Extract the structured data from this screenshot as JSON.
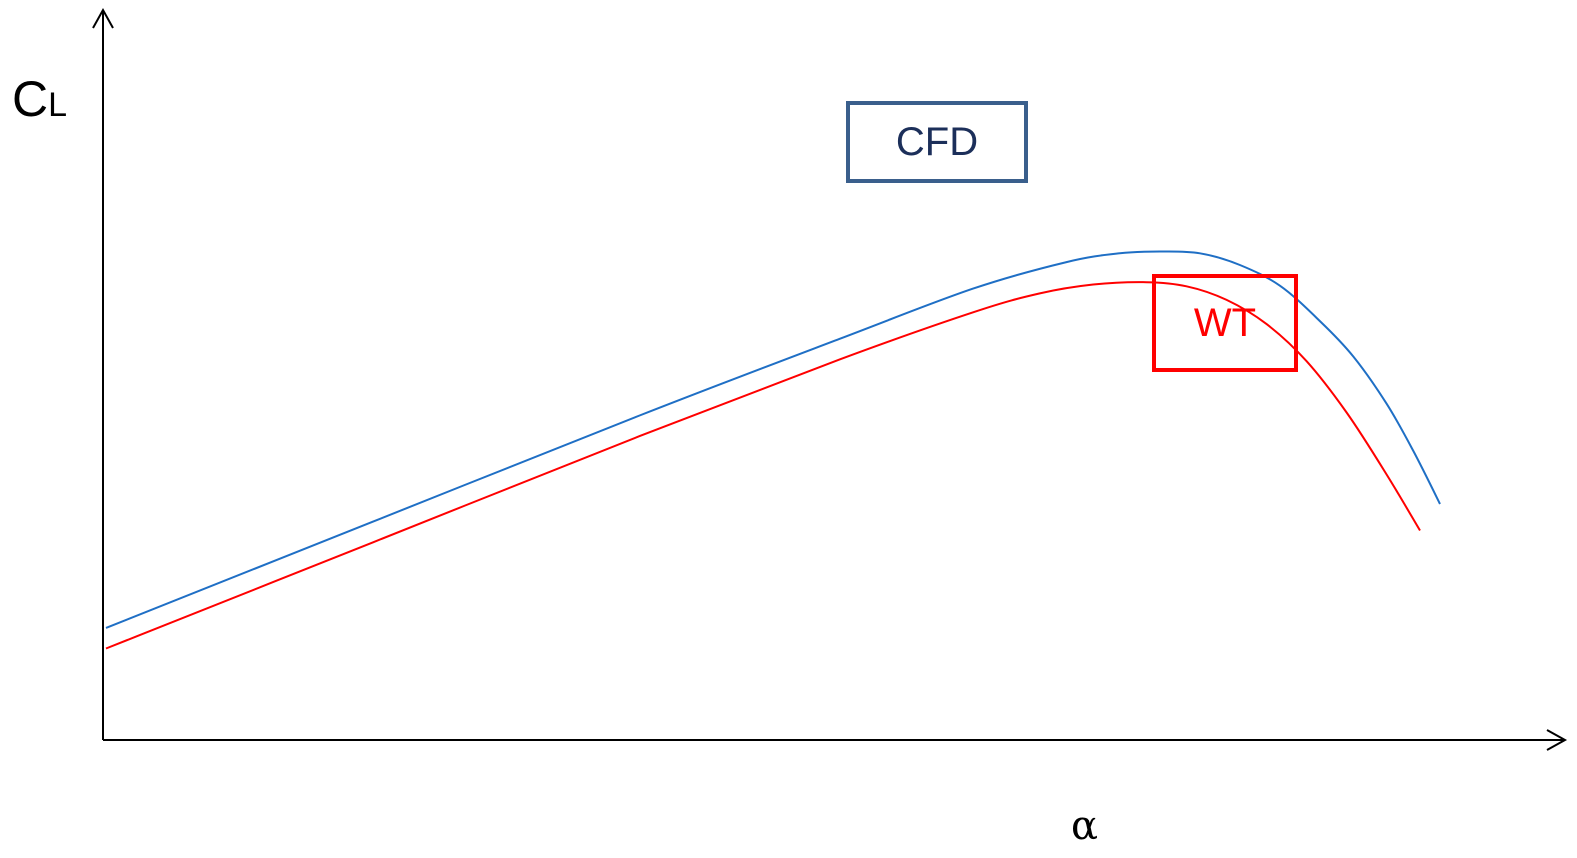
{
  "chart_data": {
    "type": "line",
    "ylabel": {
      "main": "C",
      "sub": "L"
    },
    "xlabel": "α",
    "xlim": [
      0,
      1
    ],
    "ylim": [
      0,
      1
    ],
    "grid": false,
    "legend_style": "boxed labels next to curves",
    "series": [
      {
        "name": "CFD",
        "color": "#1f6fc5",
        "label_color": "#1c2f5a",
        "box_color": "#3a5f8c",
        "x": [
          0.0,
          0.2,
          0.4,
          0.55,
          0.65,
          0.72,
          0.76,
          0.79,
          0.82,
          0.85,
          0.88,
          0.91,
          0.935,
          0.96,
          0.98,
          1.0
        ],
        "y": [
          0.19,
          0.37,
          0.55,
          0.68,
          0.765,
          0.81,
          0.825,
          0.828,
          0.825,
          0.805,
          0.77,
          0.71,
          0.65,
          0.57,
          0.49,
          0.4
        ]
      },
      {
        "name": "WT",
        "color": "#ff0000",
        "label_color": "#ff0000",
        "box_color": "#ff0000",
        "x": [
          0.0,
          0.2,
          0.4,
          0.55,
          0.65,
          0.7,
          0.74,
          0.78,
          0.81,
          0.84,
          0.87,
          0.9,
          0.93,
          0.96,
          0.985
        ],
        "y": [
          0.155,
          0.335,
          0.515,
          0.645,
          0.725,
          0.757,
          0.772,
          0.776,
          0.769,
          0.746,
          0.705,
          0.642,
          0.555,
          0.45,
          0.355
        ]
      }
    ]
  }
}
